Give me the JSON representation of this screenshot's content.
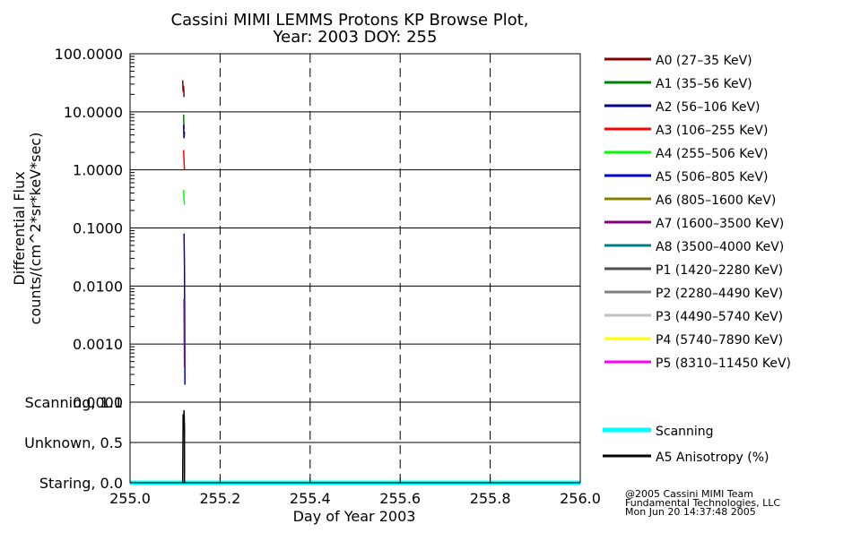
{
  "chart_data": [
    {
      "type": "line",
      "title": "Cassini MIMI LEMMS Protons KP Browse Plot,",
      "subtitle": "Year: 2003 DOY: 255",
      "xlabel": "",
      "ylabel": "Differential Flux",
      "ylabel2": "counts/(cm^2*sr*keV*sec)",
      "yscale": "log",
      "ylim": [
        0.0001,
        100
      ],
      "xlim": [
        255.0,
        256.0
      ],
      "grid": true,
      "yticks": [
        100,
        10,
        1,
        0.1,
        0.01,
        0.001,
        0.0001
      ],
      "ytick_labels": [
        "100.0000",
        "10.0000",
        "1.0000",
        "0.1000",
        "0.0100",
        "0.0010",
        "0.0001"
      ],
      "xgrid_dashed": [
        255.2,
        255.4,
        255.6,
        255.8
      ],
      "legend_position": "right",
      "series": [
        {
          "name": "A0 (27–35 KeV)",
          "color": "#800000",
          "x": [
            255.117,
            255.118,
            255.119,
            255.12
          ],
          "values": [
            35,
            22,
            28,
            18
          ]
        },
        {
          "name": "A1 (35–56 KeV)",
          "color": "#008000",
          "x": [
            255.119,
            255.12
          ],
          "values": [
            9,
            5
          ]
        },
        {
          "name": "A2 (56–106 KeV)",
          "color": "#000080",
          "x": [
            255.119,
            255.12,
            255.121
          ],
          "values": [
            6,
            3.5,
            4.5
          ]
        },
        {
          "name": "A3 (106–255 KeV)",
          "color": "#ff0000",
          "x": [
            255.119,
            255.12,
            255.121
          ],
          "values": [
            2.2,
            1.4,
            1.0
          ]
        },
        {
          "name": "A4 (255–506 KeV)",
          "color": "#00ff00",
          "x": [
            255.119,
            255.12,
            255.121
          ],
          "values": [
            0.45,
            0.3,
            0.25
          ]
        },
        {
          "name": "A5 (506–805 KeV)",
          "color": "#0000cc",
          "x": [
            255.12,
            255.121,
            255.122
          ],
          "values": [
            0.08,
            0.02,
            0.0002
          ]
        },
        {
          "name": "A6 (805–1600 KeV)",
          "color": "#808000",
          "x": [],
          "values": []
        },
        {
          "name": "A7 (1600–3500 KeV)",
          "color": "#800080",
          "x": [
            255.12,
            255.121
          ],
          "values": [
            0.006,
            0.0004
          ]
        },
        {
          "name": "A8 (3500–4000 KeV)",
          "color": "#008080",
          "x": [],
          "values": []
        },
        {
          "name": "P1 (1420–2280 KeV)",
          "color": "#505050",
          "x": [],
          "values": []
        },
        {
          "name": "P2 (2280–4490 KeV)",
          "color": "#808080",
          "x": [],
          "values": []
        },
        {
          "name": "P3 (4490–5740 KeV)",
          "color": "#c0c0c0",
          "x": [],
          "values": []
        },
        {
          "name": "P4 (5740–7890 KeV)",
          "color": "#ffff00",
          "x": [],
          "values": []
        },
        {
          "name": "P5 (8310–11450 KeV)",
          "color": "#ff00ff",
          "x": [],
          "values": []
        }
      ]
    },
    {
      "type": "line",
      "title": "",
      "xlabel": "Day of Year 2003",
      "ylabel": "",
      "xlim": [
        255.0,
        256.0
      ],
      "ylim": [
        0,
        1
      ],
      "xticks": [
        255.0,
        255.2,
        255.4,
        255.6,
        255.8,
        256.0
      ],
      "xtick_labels": [
        "255.0",
        "255.2",
        "255.4",
        "255.6",
        "255.8",
        "256.0"
      ],
      "ytick_labels": [
        "Staring, 0.0",
        "Unknown, 0.5",
        "Scanning, 1.0"
      ],
      "yticks": [
        0,
        0.5,
        1
      ],
      "legend_position": "right",
      "series": [
        {
          "name": "Scanning",
          "color": "#00ffff",
          "x": [
            255.0,
            256.0
          ],
          "values": [
            0,
            0
          ]
        },
        {
          "name": "A5 Anisotropy (%)",
          "color": "#000000",
          "x": [
            255.117,
            255.118,
            255.119,
            255.12,
            255.121,
            255.121
          ],
          "values": [
            0,
            0.85,
            0.65,
            0.9,
            0.7,
            0
          ]
        }
      ]
    }
  ],
  "credits": {
    "line1": "@2005 Cassini MIMI Team",
    "line2": "Fundamental Technologies, LLC",
    "line3": "Mon Jun 20 14:37:48 2005"
  }
}
